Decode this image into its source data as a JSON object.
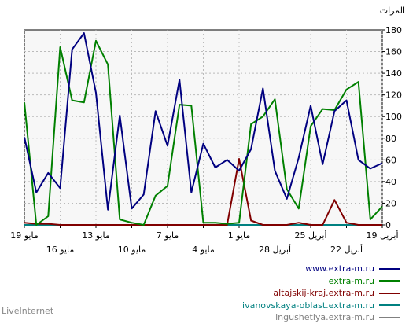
{
  "brand": "LiveInternet",
  "chart_data": {
    "type": "line",
    "ylabel": "المرات",
    "ylim": [
      0,
      180
    ],
    "yticks": [
      0,
      20,
      40,
      60,
      80,
      100,
      120,
      140,
      160,
      180
    ],
    "x_tick_labels_row1": [
      "19 مايو",
      "13 مايو",
      "7 مايو",
      "1 مايو",
      "25 أبريل",
      "19 أبريل"
    ],
    "x_tick_labels_row2": [
      "16 مايو",
      "10 مايو",
      "4 مايو",
      "28 أبريل",
      "22 أبريل"
    ],
    "grid": true,
    "x_order": "newest-left",
    "num_points": 31,
    "series": [
      {
        "name": "www.extra-m.ru",
        "color": "#000080",
        "values": [
          81,
          30,
          48,
          34,
          162,
          177,
          122,
          14,
          101,
          15,
          28,
          105,
          73,
          134,
          30,
          75,
          53,
          60,
          50,
          70,
          126,
          50,
          24,
          62,
          110,
          56,
          105,
          115,
          60,
          52,
          57
        ]
      },
      {
        "name": "extra-m.ru",
        "color": "#008000",
        "values": [
          113,
          0,
          8,
          164,
          115,
          113,
          170,
          148,
          5,
          2,
          0,
          27,
          36,
          111,
          110,
          2,
          2,
          1,
          2,
          93,
          100,
          116,
          33,
          15,
          91,
          107,
          106,
          125,
          132,
          5,
          17
        ]
      },
      {
        "name": "altajskij-kraj.extra-m.ru",
        "color": "#800000",
        "values": [
          2,
          1,
          1,
          0,
          0,
          0,
          0,
          0,
          0,
          0,
          0,
          0,
          0,
          0,
          0,
          0,
          0,
          0,
          61,
          4,
          0,
          0,
          0,
          2,
          0,
          0,
          23,
          2,
          0,
          0,
          0
        ]
      },
      {
        "name": "ivanovskaya-oblast.extra-m.ru",
        "color": "#008080",
        "values": [
          0,
          0,
          0,
          0,
          0,
          0,
          0,
          0,
          0,
          0,
          0,
          0,
          0,
          0,
          0,
          0,
          0,
          0,
          0,
          0,
          0,
          0,
          0,
          0,
          0,
          0,
          0,
          0,
          0,
          0,
          0
        ]
      },
      {
        "name": "ingushetiya.extra-m.ru",
        "color": "#808080",
        "values": [
          0,
          0,
          0,
          0,
          0,
          0,
          0,
          0,
          0,
          0,
          0,
          0,
          0,
          0,
          0,
          0,
          0,
          0,
          0,
          0,
          0,
          0,
          0,
          0,
          0,
          0,
          0,
          0,
          0,
          0,
          0
        ]
      }
    ]
  }
}
